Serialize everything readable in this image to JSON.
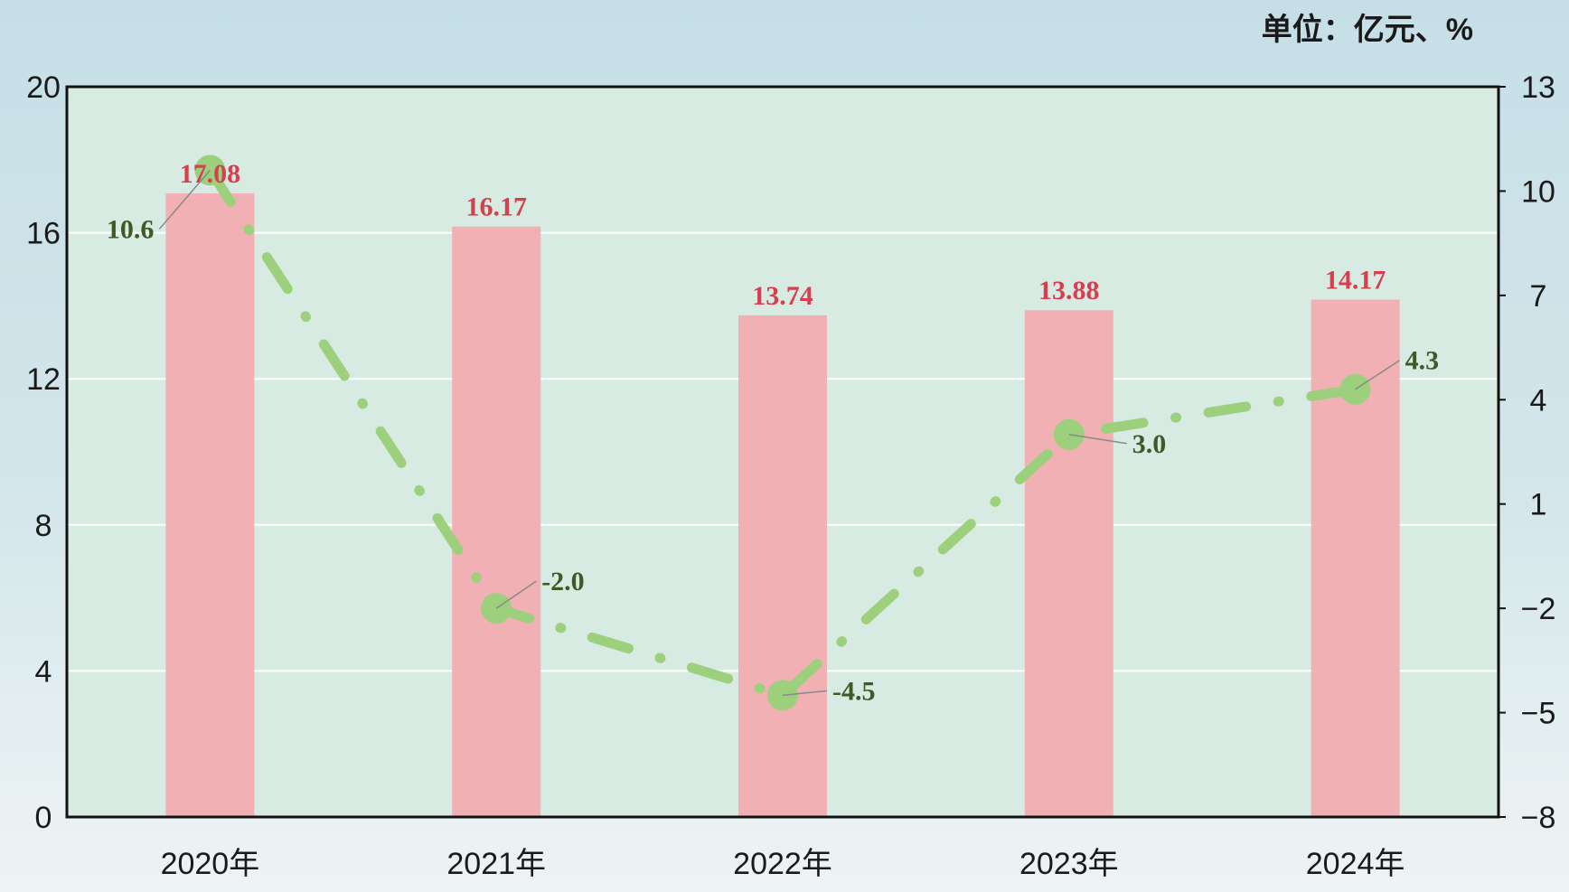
{
  "chart_data": {
    "type": "bar",
    "unit_label": "单位：亿元、%",
    "categories": [
      "2020年",
      "2021年",
      "2022年",
      "2023年",
      "2024年"
    ],
    "series": [
      {
        "type": "bar",
        "axis": "left",
        "values": [
          17.08,
          16.17,
          13.74,
          13.88,
          14.17
        ],
        "labels": [
          "17.08",
          "16.17",
          "13.74",
          "13.88",
          "14.17"
        ]
      },
      {
        "type": "line",
        "axis": "right",
        "values": [
          10.6,
          -2.0,
          -4.5,
          3.0,
          4.3
        ],
        "labels": [
          "10.6",
          "-2.0",
          "-4.5",
          "3.0",
          "4.3"
        ]
      }
    ],
    "ylim_left": [
      0,
      20
    ],
    "yticks_left": [
      "0",
      "4",
      "8",
      "12",
      "16",
      "20"
    ],
    "ylim_right": [
      -8,
      13
    ],
    "yticks_right": [
      "−8",
      "−5",
      "−2",
      "1",
      "4",
      "7",
      "10",
      "13"
    ],
    "grid": true,
    "colors": {
      "bar": "#f0b0b4",
      "bar_label": "#d6404e",
      "line": "#9cd07c",
      "line_label": "#3f5a26",
      "plot_bg": "#d8ebe3"
    }
  }
}
